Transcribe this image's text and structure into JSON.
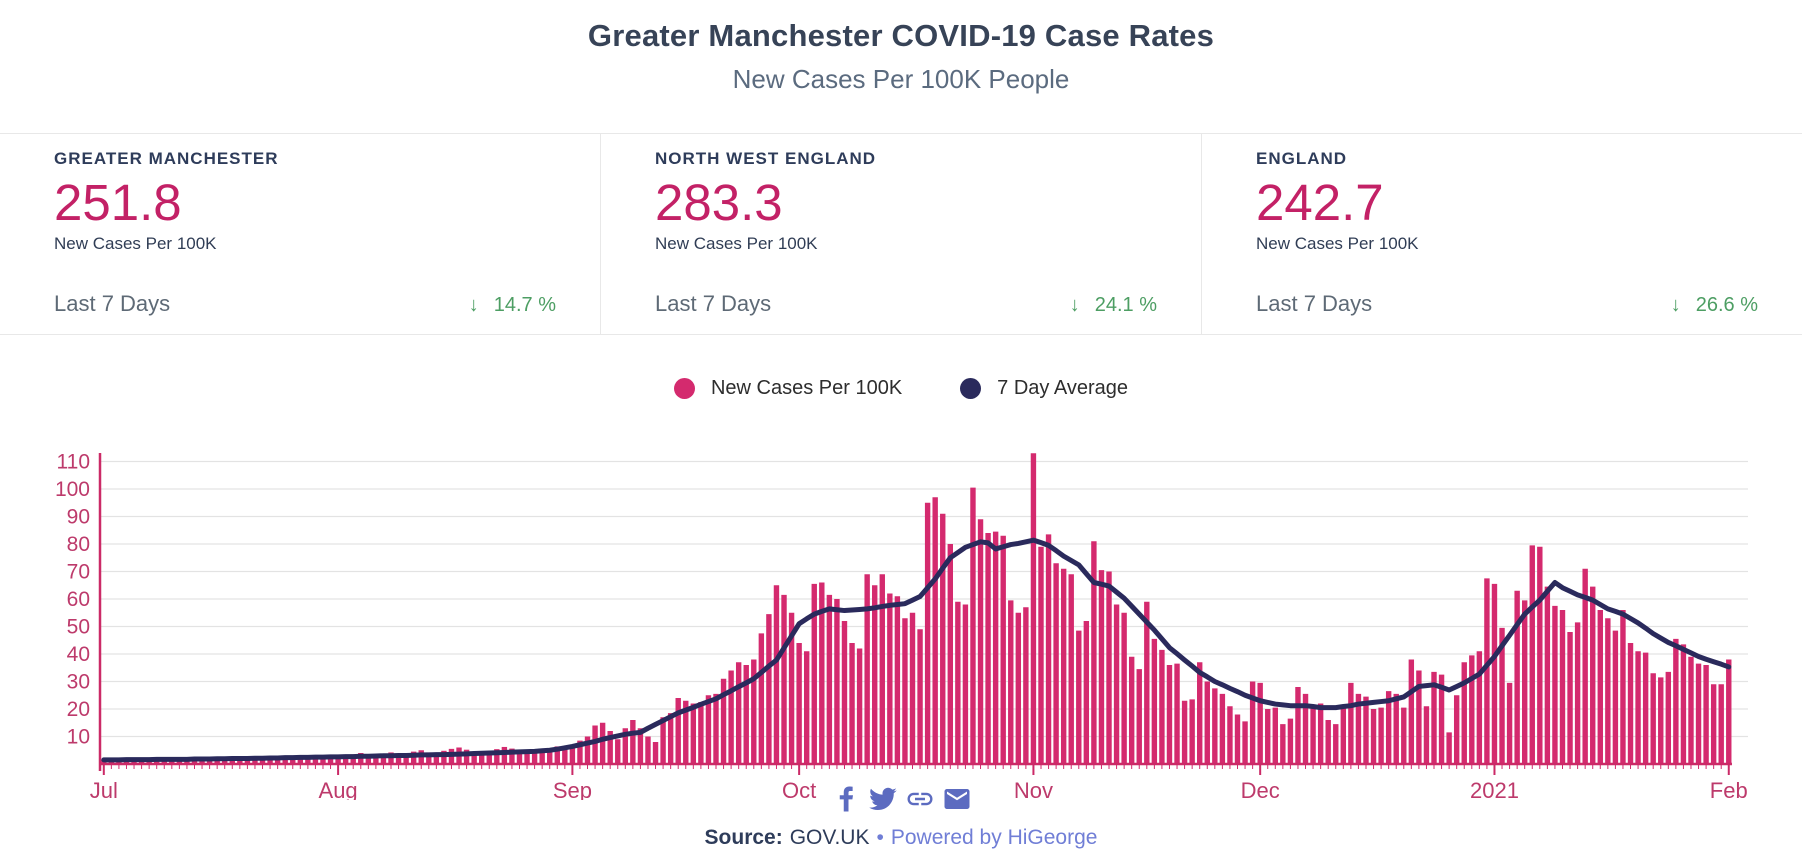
{
  "header": {
    "title": "Greater Manchester COVID-19 Case Rates",
    "subtitle": "New Cases Per 100K People"
  },
  "cards": [
    {
      "label": "GREATER MANCHESTER",
      "value": "251.8",
      "unit": "New Cases Per 100K",
      "period": "Last 7 Days",
      "arrow": "↓",
      "change": "14.7 %",
      "direction": "down"
    },
    {
      "label": "NORTH WEST ENGLAND",
      "value": "283.3",
      "unit": "New Cases Per 100K",
      "period": "Last 7 Days",
      "arrow": "↓",
      "change": "24.1 %",
      "direction": "down"
    },
    {
      "label": "ENGLAND",
      "value": "242.7",
      "unit": "New Cases Per 100K",
      "period": "Last 7 Days",
      "arrow": "↓",
      "change": "26.6 %",
      "direction": "down"
    }
  ],
  "legend": [
    {
      "label": "New Cases Per 100K",
      "color": "#d42a6e"
    },
    {
      "label": "7 Day Average",
      "color": "#2a2a5c"
    }
  ],
  "chart_data": {
    "type": "bar",
    "title": "Greater Manchester COVID-19 Case Rates — New Cases Per 100K People",
    "xlabel": "",
    "ylabel": "",
    "x_tick_labels": [
      "Jul",
      "Aug",
      "Sep",
      "Oct",
      "Nov",
      "Dec",
      "2021",
      "Feb"
    ],
    "x_tick_day_index": [
      0,
      31,
      62,
      92,
      123,
      153,
      184,
      215
    ],
    "y_ticks": [
      10,
      20,
      30,
      40,
      50,
      60,
      70,
      80,
      90,
      100,
      110
    ],
    "ylim": [
      0,
      115
    ],
    "grid": true,
    "legend_position": "top-center",
    "colors": {
      "axis": "#cb2a67",
      "tick_label": "#bd3a6b",
      "grid": "#e3e3e3"
    },
    "series": [
      {
        "name": "New Cases Per 100K",
        "type": "bar",
        "color": "#d42a6e",
        "values": [
          1.5,
          1.2,
          1.8,
          2,
          1.5,
          1,
          1.3,
          1.6,
          1.2,
          1.5,
          1.8,
          1.4,
          1.1,
          1.6,
          2.2,
          2.5,
          2,
          1.6,
          1.4,
          1.8,
          2.4,
          2.8,
          2.2,
          1.8,
          2.6,
          3,
          2.4,
          2,
          2.6,
          3.2,
          2.8,
          3,
          2.4,
          3.5,
          4,
          3.2,
          2.8,
          3.6,
          4.2,
          3.8,
          3,
          4.5,
          5,
          4.2,
          3.6,
          4.8,
          5.5,
          6,
          5.2,
          4.4,
          3.8,
          4.6,
          5.4,
          6.2,
          5.6,
          4.8,
          4,
          4.4,
          5,
          5.6,
          6.4,
          5.8,
          7,
          8.5,
          10,
          14,
          15,
          12,
          9,
          13,
          16,
          13,
          10,
          8,
          17,
          18.5,
          24,
          23,
          22,
          22.5,
          25,
          25.5,
          31,
          34,
          37,
          36,
          38,
          47.5,
          54.5,
          65,
          61.5,
          55,
          44,
          41,
          65.5,
          66,
          61.5,
          60,
          52,
          44,
          42,
          69,
          65,
          69,
          62,
          61,
          53,
          55,
          49,
          95,
          97,
          91,
          80,
          59,
          58,
          100.5,
          89,
          84,
          84.5,
          83,
          59.5,
          55,
          57,
          113,
          79,
          83.5,
          73,
          71,
          69,
          48.5,
          52,
          81,
          70.5,
          70,
          58,
          55,
          39,
          34.5,
          59,
          45.5,
          41.5,
          36,
          36.5,
          23,
          23.5,
          37,
          30,
          27.5,
          25.5,
          21,
          18,
          15.5,
          30,
          29.5,
          20,
          20.5,
          14.5,
          16.5,
          28,
          25.5,
          20.5,
          22,
          16,
          14.5,
          21,
          29.5,
          25.5,
          24.5,
          20,
          20.5,
          26.5,
          25.5,
          20.5,
          38,
          34,
          21,
          33.5,
          32.5,
          11.5,
          25,
          37,
          39.5,
          41,
          67.5,
          65.5,
          49.5,
          29.5,
          63,
          59.5,
          79.5,
          79,
          64.5,
          57.5,
          56,
          48,
          51.5,
          71,
          64.5,
          56,
          53,
          48.5,
          56,
          44,
          41,
          40.5,
          33,
          31.5,
          33.5,
          45.5,
          43.5,
          39,
          36.5,
          36,
          29,
          29,
          38
        ]
      },
      {
        "name": "7 Day Average",
        "type": "line",
        "color": "#2a2a5c",
        "values": [
          1.5,
          1.5,
          1.5,
          1.6,
          1.6,
          1.6,
          1.6,
          1.7,
          1.7,
          1.7,
          1.7,
          1.7,
          1.8,
          1.8,
          1.8,
          1.9,
          1.9,
          2,
          2,
          2,
          2.1,
          2.1,
          2.2,
          2.2,
          2.3,
          2.3,
          2.4,
          2.4,
          2.5,
          2.5,
          2.6,
          2.6,
          2.7,
          2.7,
          2.8,
          2.8,
          2.9,
          3,
          3,
          3.1,
          3.1,
          3.2,
          3.3,
          3.3,
          3.4,
          3.4,
          3.5,
          3.6,
          3.7,
          3.8,
          3.9,
          4,
          4.1,
          4.2,
          4.3,
          4.4,
          4.5,
          4.6,
          4.8,
          5,
          5.4,
          5.9,
          6.4,
          7,
          7.6,
          8.2,
          9,
          9.6,
          10.2,
          10.8,
          11.2,
          11.5,
          13,
          14.4,
          15.8,
          17.2,
          18.6,
          19.6,
          20.6,
          21.7,
          22.7,
          23.7,
          25.2,
          26.6,
          28.1,
          29.5,
          31,
          33.3,
          35.6,
          37.8,
          42.2,
          46.6,
          51,
          52.8,
          54.5,
          55.5,
          56.4,
          56.1,
          55.8,
          56,
          56.2,
          56.4,
          56.8,
          57.3,
          57.7,
          58,
          58.3,
          59.6,
          60.9,
          64.1,
          67.3,
          71.2,
          75,
          76.9,
          78.8,
          79.8,
          80.8,
          80.4,
          78.2,
          79,
          79.8,
          80.2,
          80.8,
          81.4,
          80.5,
          79.5,
          77.6,
          75.6,
          74,
          72.4,
          69.2,
          66,
          65.4,
          64.7,
          62.5,
          60.3,
          57.4,
          54.5,
          51.6,
          48.7,
          45.5,
          42.3,
          40.1,
          37.8,
          35.6,
          33.3,
          31.7,
          30,
          28.8,
          27.5,
          26.3,
          25,
          24,
          23,
          22.4,
          21.8,
          21.5,
          21.2,
          21.2,
          21.2,
          20.9,
          20.5,
          20.5,
          20.5,
          20.9,
          21.2,
          21.8,
          22.1,
          22.4,
          22.7,
          23,
          23.7,
          24.4,
          26.3,
          28.2,
          28.5,
          28.8,
          27.9,
          26.9,
          28.2,
          29.5,
          31.1,
          32.7,
          35.9,
          39.1,
          43,
          46.8,
          50.7,
          54.5,
          57.1,
          59.6,
          62.8,
          66,
          64.1,
          62.8,
          61.5,
          60.6,
          59.6,
          58,
          56.4,
          55.5,
          54.5,
          52.9,
          51.3,
          49.4,
          47.4,
          45.8,
          44.2,
          43,
          41.7,
          40.4,
          39.1,
          38.1,
          37.2,
          36.3,
          35.3
        ]
      }
    ]
  },
  "footer": {
    "icons": [
      "facebook-icon",
      "twitter-icon",
      "link-icon",
      "email-icon"
    ],
    "icon_color": "#5c6bc0",
    "source_label": "Source:",
    "source_value": "GOV.UK",
    "separator": "•",
    "powered_by": "Powered by HiGeorge"
  }
}
